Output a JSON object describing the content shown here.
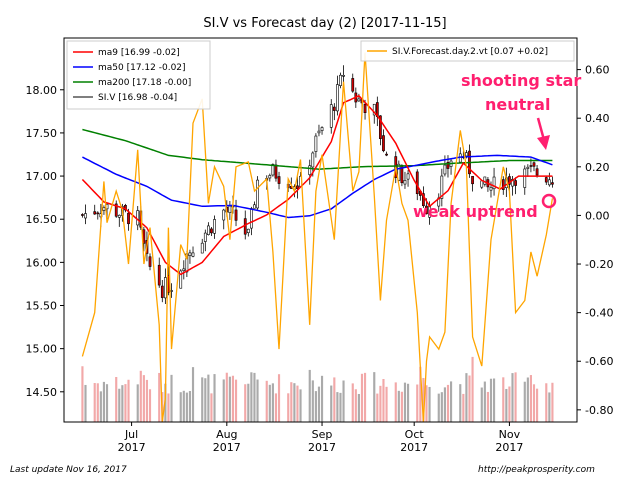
{
  "chart_data": {
    "type": "candlestick",
    "title": "SI.V vs Forecast day (2)  [2017-11-15]",
    "y_left": {
      "range": [
        14.15,
        18.6
      ],
      "ticks": [
        "14.50",
        "15.00",
        "15.50",
        "16.00",
        "16.50",
        "17.00",
        "17.50",
        "18.00"
      ]
    },
    "y_right": {
      "range": [
        -0.85,
        0.73
      ],
      "ticks": [
        "-0.80",
        "-0.60",
        "-0.40",
        "-0.20",
        "0.00",
        "0.20",
        "0.40",
        "0.60"
      ]
    },
    "x_axis": {
      "ticks": [
        {
          "label": "Jul",
          "sub": "2017",
          "date": "2017-07-01"
        },
        {
          "label": "Aug",
          "sub": "2017",
          "date": "2017-08-01"
        },
        {
          "label": "Sep",
          "sub": "2017",
          "date": "2017-09-01"
        },
        {
          "label": "Oct",
          "sub": "2017",
          "date": "2017-10-01"
        },
        {
          "label": "Nov",
          "sub": "2017",
          "date": "2017-11-01"
        }
      ],
      "range": [
        "2017-06-09",
        "2017-11-23"
      ]
    },
    "legend_left": {
      "placement": "top-left",
      "entries": [
        {
          "label": "ma9 [16.99 -0.02]",
          "color": "#ff0000"
        },
        {
          "label": "ma50 [17.12 -0.02]",
          "color": "#0000ff"
        },
        {
          "label": "ma200 [17.18 -0.00]",
          "color": "#008000"
        },
        {
          "label": "SI.V [16.98 -0.04]",
          "color": "#555555"
        }
      ]
    },
    "legend_right": {
      "placement": "top-right",
      "entries": [
        {
          "label": "SI.V.Forecast.day.2.vt [0.07 +0.02]",
          "color": "#ffa500"
        }
      ]
    },
    "annotations": [
      {
        "text": "shooting star",
        "color": "#ff1f6f"
      },
      {
        "text": "neutral",
        "color": "#ff1f6f"
      },
      {
        "text": "weak uptrend",
        "color": "#ff1f6f"
      }
    ],
    "series": {
      "ma9_anchors": [
        [
          "2017-06-15",
          16.96
        ],
        [
          "2017-06-22",
          16.7
        ],
        [
          "2017-06-29",
          16.62
        ],
        [
          "2017-07-06",
          16.4
        ],
        [
          "2017-07-12",
          16.0
        ],
        [
          "2017-07-17",
          15.86
        ],
        [
          "2017-07-24",
          16.0
        ],
        [
          "2017-07-31",
          16.3
        ],
        [
          "2017-08-08",
          16.45
        ],
        [
          "2017-08-14",
          16.55
        ],
        [
          "2017-08-21",
          16.73
        ],
        [
          "2017-08-28",
          16.98
        ],
        [
          "2017-09-04",
          17.4
        ],
        [
          "2017-09-08",
          17.85
        ],
        [
          "2017-09-13",
          17.93
        ],
        [
          "2017-09-19",
          17.7
        ],
        [
          "2017-09-25",
          17.38
        ],
        [
          "2017-10-01",
          16.95
        ],
        [
          "2017-10-06",
          16.65
        ],
        [
          "2017-10-12",
          16.83
        ],
        [
          "2017-10-17",
          17.15
        ],
        [
          "2017-10-23",
          16.95
        ],
        [
          "2017-10-29",
          16.85
        ],
        [
          "2017-11-04",
          17.0
        ],
        [
          "2017-11-15",
          17.0
        ]
      ],
      "ma50_anchors": [
        [
          "2017-06-15",
          17.22
        ],
        [
          "2017-06-26",
          17.02
        ],
        [
          "2017-07-06",
          16.88
        ],
        [
          "2017-07-14",
          16.72
        ],
        [
          "2017-07-24",
          16.65
        ],
        [
          "2017-08-03",
          16.66
        ],
        [
          "2017-08-14",
          16.58
        ],
        [
          "2017-08-21",
          16.52
        ],
        [
          "2017-08-28",
          16.54
        ],
        [
          "2017-09-04",
          16.62
        ],
        [
          "2017-09-11",
          16.8
        ],
        [
          "2017-09-18",
          16.96
        ],
        [
          "2017-09-25",
          17.08
        ],
        [
          "2017-10-01",
          17.12
        ],
        [
          "2017-10-08",
          17.17
        ],
        [
          "2017-10-16",
          17.22
        ],
        [
          "2017-10-28",
          17.24
        ],
        [
          "2017-11-08",
          17.22
        ],
        [
          "2017-11-15",
          17.13
        ]
      ],
      "ma200_anchors": [
        [
          "2017-06-15",
          17.54
        ],
        [
          "2017-06-29",
          17.41
        ],
        [
          "2017-07-13",
          17.24
        ],
        [
          "2017-07-24",
          17.19
        ],
        [
          "2017-08-14",
          17.13
        ],
        [
          "2017-08-31",
          17.08
        ],
        [
          "2017-09-15",
          17.11
        ],
        [
          "2017-10-01",
          17.12
        ],
        [
          "2017-10-15",
          17.15
        ],
        [
          "2017-11-01",
          17.18
        ],
        [
          "2017-11-15",
          17.18
        ]
      ],
      "price_anchors": [
        [
          "2017-06-15",
          16.55
        ],
        [
          "2017-06-22",
          16.65
        ],
        [
          "2017-06-29",
          16.55
        ],
        [
          "2017-07-03",
          16.5
        ],
        [
          "2017-07-06",
          16.0
        ],
        [
          "2017-07-11",
          15.7
        ],
        [
          "2017-07-14",
          15.75
        ],
        [
          "2017-07-19",
          16.1
        ],
        [
          "2017-07-25",
          16.35
        ],
        [
          "2017-07-31",
          16.6
        ],
        [
          "2017-08-03",
          16.55
        ],
        [
          "2017-08-08",
          16.3
        ],
        [
          "2017-08-11",
          16.95
        ],
        [
          "2017-08-16",
          17.05
        ],
        [
          "2017-08-21",
          16.95
        ],
        [
          "2017-08-25",
          16.9
        ],
        [
          "2017-08-30",
          17.4
        ],
        [
          "2017-09-05",
          17.85
        ],
        [
          "2017-09-08",
          18.2
        ],
        [
          "2017-09-12",
          17.9
        ],
        [
          "2017-09-18",
          17.75
        ],
        [
          "2017-09-22",
          17.2
        ],
        [
          "2017-09-27",
          17.0
        ],
        [
          "2017-10-02",
          16.85
        ],
        [
          "2017-10-05",
          16.65
        ],
        [
          "2017-10-09",
          16.85
        ],
        [
          "2017-10-13",
          17.2
        ],
        [
          "2017-10-17",
          17.25
        ],
        [
          "2017-10-20",
          17.0
        ],
        [
          "2017-10-25",
          16.85
        ],
        [
          "2017-10-30",
          16.95
        ],
        [
          "2017-11-03",
          17.0
        ],
        [
          "2017-11-09",
          17.05
        ],
        [
          "2017-11-15",
          16.98
        ]
      ],
      "forecast_anchors": [
        [
          "2017-06-15",
          -0.58
        ],
        [
          "2017-06-19",
          -0.4
        ],
        [
          "2017-06-22",
          0.14
        ],
        [
          "2017-06-23",
          -0.03
        ],
        [
          "2017-06-26",
          0.1
        ],
        [
          "2017-06-28",
          0.02
        ],
        [
          "2017-06-30",
          -0.2
        ],
        [
          "2017-07-03",
          0.27
        ],
        [
          "2017-07-05",
          -0.2
        ],
        [
          "2017-07-07",
          -0.05
        ],
        [
          "2017-07-10",
          -0.45
        ],
        [
          "2017-07-11",
          -0.85
        ],
        [
          "2017-07-12",
          -0.75
        ],
        [
          "2017-07-13",
          -0.05
        ],
        [
          "2017-07-14",
          -0.55
        ],
        [
          "2017-07-17",
          -0.12
        ],
        [
          "2017-07-19",
          -0.18
        ],
        [
          "2017-07-21",
          0.38
        ],
        [
          "2017-07-24",
          0.48
        ],
        [
          "2017-07-26",
          0.05
        ],
        [
          "2017-07-28",
          0.2
        ],
        [
          "2017-07-31",
          0.12
        ],
        [
          "2017-08-02",
          -0.1
        ],
        [
          "2017-08-04",
          0.2
        ],
        [
          "2017-08-08",
          0.22
        ],
        [
          "2017-08-10",
          0.1
        ],
        [
          "2017-08-14",
          0.15
        ],
        [
          "2017-08-16",
          -0.15
        ],
        [
          "2017-08-18",
          -0.55
        ],
        [
          "2017-08-21",
          0.15
        ],
        [
          "2017-08-23",
          0.1
        ],
        [
          "2017-08-25",
          0.23
        ],
        [
          "2017-08-28",
          -0.45
        ],
        [
          "2017-08-30",
          0.1
        ],
        [
          "2017-09-01",
          0.25
        ],
        [
          "2017-09-05",
          -0.1
        ],
        [
          "2017-09-08",
          0.55
        ],
        [
          "2017-09-11",
          0.1
        ],
        [
          "2017-09-13",
          0.18
        ],
        [
          "2017-09-15",
          0.67
        ],
        [
          "2017-09-18",
          0.08
        ],
        [
          "2017-09-20",
          -0.35
        ],
        [
          "2017-09-22",
          -0.02
        ],
        [
          "2017-09-25",
          0.2
        ],
        [
          "2017-09-27",
          0.05
        ],
        [
          "2017-09-29",
          -0.02
        ],
        [
          "2017-10-02",
          -0.4
        ],
        [
          "2017-10-04",
          -0.85
        ],
        [
          "2017-10-05",
          -0.6
        ],
        [
          "2017-10-06",
          -0.5
        ],
        [
          "2017-10-09",
          -0.55
        ],
        [
          "2017-10-11",
          -0.48
        ],
        [
          "2017-10-13",
          0.05
        ],
        [
          "2017-10-16",
          0.35
        ],
        [
          "2017-10-18",
          0.2
        ],
        [
          "2017-10-20",
          -0.5
        ],
        [
          "2017-10-23",
          -0.62
        ],
        [
          "2017-10-26",
          -0.1
        ],
        [
          "2017-10-30",
          0.2
        ],
        [
          "2017-11-01",
          0.1
        ],
        [
          "2017-11-03",
          -0.4
        ],
        [
          "2017-11-06",
          -0.35
        ],
        [
          "2017-11-08",
          -0.15
        ],
        [
          "2017-11-10",
          -0.25
        ],
        [
          "2017-11-13",
          -0.08
        ],
        [
          "2017-11-15",
          0.07
        ]
      ]
    },
    "footer": {
      "left": "Last update Nov 16, 2017",
      "right": "http://peakprosperity.com"
    },
    "colors": {
      "up_candle": "#ffffff",
      "down_candle": "#cc0000",
      "wick": "#000000",
      "volume_up": "#aaaaaa",
      "volume_down": "#f2a8a8",
      "annotation": "#ff1f6f"
    }
  }
}
